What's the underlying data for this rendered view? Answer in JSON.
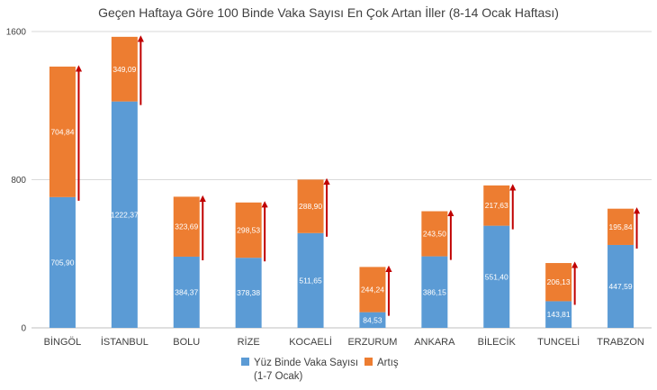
{
  "chart_data": {
    "type": "bar",
    "stacked": true,
    "title": "Geçen Haftaya Göre 100 Binde Vaka Sayısı En Çok Artan İller (8-14 Ocak Haftası)",
    "categories": [
      "BİNGÖL",
      "İSTANBUL",
      "BOLU",
      "RİZE",
      "KOCAELİ",
      "ERZURUM",
      "ANKARA",
      "BİLECİK",
      "TUNCELİ",
      "TRABZON"
    ],
    "series": [
      {
        "name": "Yüz Binde Vaka Sayısı (1-7 Ocak)",
        "legend_lines": [
          "Yüz Binde Vaka Sayısı",
          "(1-7 Ocak)"
        ],
        "color": "#5B9BD5",
        "values": [
          705.9,
          1222.37,
          384.37,
          378.38,
          511.65,
          84.53,
          386.15,
          551.4,
          143.81,
          447.59
        ],
        "labels": [
          "705,90",
          "1222,37",
          "384,37",
          "378,38",
          "511,65",
          "84,53",
          "386,15",
          "551,40",
          "143,81",
          "447,59"
        ]
      },
      {
        "name": "Artış",
        "legend_lines": [
          "Artış"
        ],
        "color": "#ED7D31",
        "values": [
          704.84,
          349.09,
          323.69,
          298.53,
          288.9,
          244.24,
          243.5,
          217.63,
          206.13,
          195.84
        ],
        "labels": [
          "704,84",
          "349,09",
          "323,69",
          "298,53",
          "288,90",
          "244,24",
          "243,50",
          "217,63",
          "206,13",
          "195,84"
        ]
      }
    ],
    "y_ticks": [
      0,
      800,
      1600
    ],
    "ylim": [
      0,
      1600
    ],
    "grid": true,
    "legend_position": "bottom",
    "arrow_color": "#C00000"
  }
}
